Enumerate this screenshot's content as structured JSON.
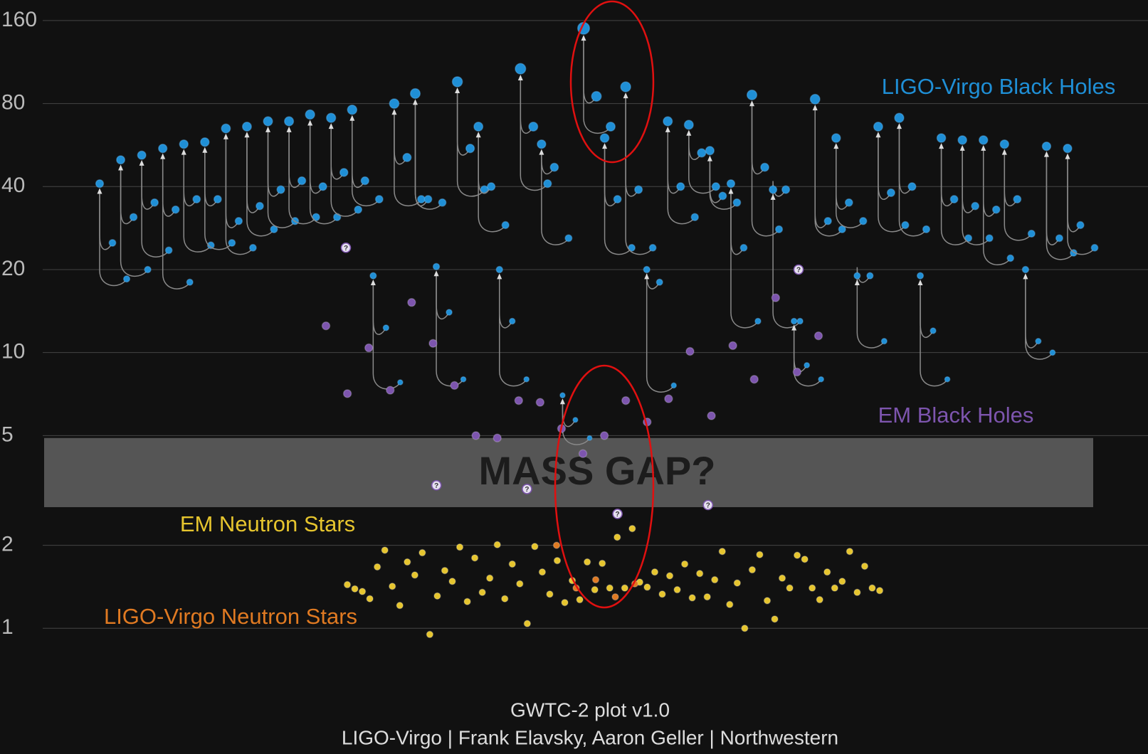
{
  "chart_data": {
    "type": "scatter",
    "ylog": true,
    "grid": true,
    "ylim": [
      0.35,
      190
    ],
    "yticks": [
      1,
      2,
      5,
      10,
      20,
      40,
      80,
      160
    ],
    "series": [
      {
        "name": "LIGO-Virgo Black Holes",
        "color": "#1f8fd6",
        "values": [
          [
            25,
            18.5,
            41
          ],
          [
            31,
            20,
            50
          ],
          [
            35,
            23.5,
            52
          ],
          [
            33,
            18,
            55
          ],
          [
            36,
            24.5,
            57
          ],
          [
            36,
            25,
            58
          ],
          [
            30,
            24,
            65
          ],
          [
            34,
            28,
            66
          ],
          [
            39,
            30,
            69
          ],
          [
            42,
            31,
            69
          ],
          [
            40,
            31,
            73
          ],
          [
            45,
            33,
            71
          ],
          [
            42,
            36,
            76
          ],
          [
            12.3,
            7.8,
            19
          ],
          [
            51,
            36,
            80
          ],
          [
            36,
            35,
            87
          ],
          [
            14,
            8,
            20.5
          ],
          [
            55,
            39,
            96
          ],
          [
            40,
            29,
            66
          ],
          [
            13,
            8,
            20
          ],
          [
            66,
            41,
            107
          ],
          [
            47,
            26,
            57
          ],
          [
            5.7,
            4.9,
            7
          ],
          [
            85,
            66,
            150
          ],
          [
            36,
            24,
            60
          ],
          [
            39,
            24,
            92
          ],
          [
            18,
            7.6,
            20
          ],
          [
            40,
            31,
            69
          ],
          [
            53,
            40,
            67
          ],
          [
            37,
            35,
            54
          ],
          [
            24,
            13,
            41
          ],
          [
            47,
            28,
            86
          ],
          [
            39,
            13,
            39
          ],
          [
            9,
            8,
            13
          ],
          [
            30,
            28,
            83
          ],
          [
            35,
            30,
            60
          ],
          [
            19,
            11,
            19
          ],
          [
            38,
            29,
            66
          ],
          [
            40,
            28,
            71
          ],
          [
            12,
            8,
            19
          ],
          [
            36,
            26,
            60
          ],
          [
            34,
            26,
            59
          ],
          [
            33,
            22,
            59
          ],
          [
            36,
            27,
            57
          ],
          [
            11,
            10,
            20
          ],
          [
            26,
            23,
            56
          ],
          [
            29,
            24,
            55
          ]
        ]
      },
      {
        "name": "EM Black Holes",
        "color": "#7d55ae",
        "values": [
          12.5,
          7.1,
          10.4,
          7.3,
          15.2,
          10.8,
          7.6,
          5.0,
          4.9,
          6.7,
          6.6,
          5.3,
          4.3,
          5.0,
          6.7,
          5.6,
          6.8,
          10.1,
          5.9,
          10.6,
          8.0,
          15.8,
          8.5,
          11.5
        ]
      },
      {
        "name": "EM Neutron Stars",
        "color": "#e6c52e",
        "values": [
          1.44,
          1.39,
          1.36,
          1.28,
          1.67,
          1.92,
          1.42,
          1.21,
          1.74,
          1.56,
          1.88,
          0.95,
          1.31,
          1.62,
          1.48,
          1.97,
          1.25,
          1.8,
          1.35,
          1.52,
          2.01,
          1.28,
          1.71,
          1.45,
          1.04,
          1.98,
          1.6,
          1.33,
          1.76,
          1.24,
          1.49,
          1.27,
          1.74,
          1.38,
          1.72,
          1.4,
          2.14,
          1.4,
          2.3,
          1.47,
          1.41,
          1.6,
          1.33,
          1.55,
          1.38,
          1.71,
          1.29,
          1.58,
          1.3,
          1.5,
          1.9,
          1.22,
          1.46,
          1.0,
          1.63,
          1.85,
          1.26,
          1.08,
          1.52,
          1.4,
          1.84,
          1.78,
          1.4,
          1.27,
          1.6,
          1.4,
          1.48,
          1.9,
          1.35,
          1.68,
          1.4,
          1.37
        ]
      },
      {
        "name": "LIGO-Virgo Neutron Stars",
        "color": "#e07a22",
        "values": [
          2.0,
          1.4,
          1.5,
          1.3,
          1.45
        ]
      }
    ],
    "uncertain": {
      "marker": "?",
      "values": [
        24,
        3.3,
        3.2,
        2.6,
        2.8,
        20
      ]
    },
    "mass_gap": {
      "label": "MASS GAP?",
      "range": [
        2.75,
        4.9
      ]
    },
    "footer": [
      "GWTC-2 plot v1.0",
      "LIGO-Virgo | Frank Elavsky, Aaron Geller | Northwestern"
    ]
  }
}
